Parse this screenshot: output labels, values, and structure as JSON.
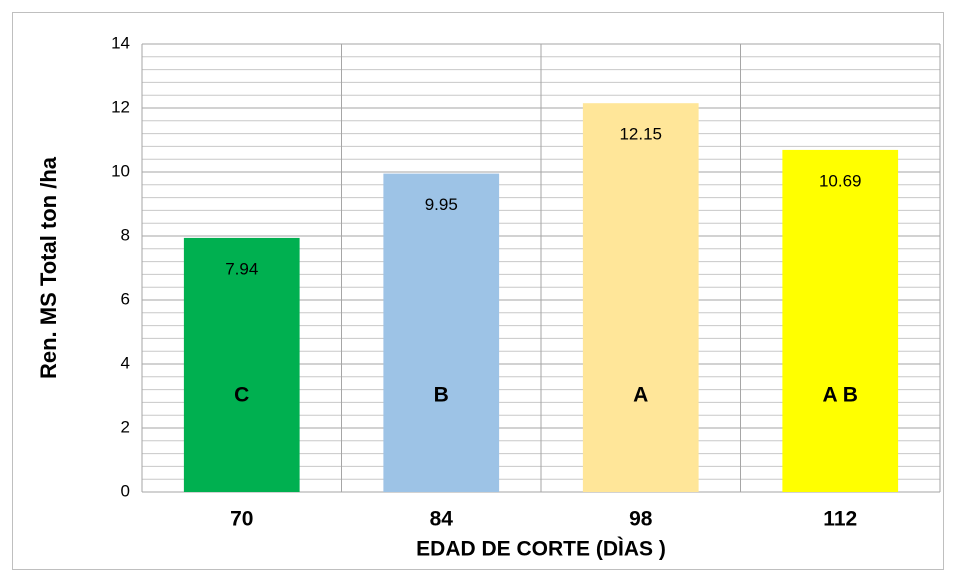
{
  "chart_data": {
    "type": "bar",
    "y_axis_label": "Ren. MS Total ton /ha",
    "x_axis_label": "EDAD DE CORTE  (DÌAS )",
    "categories": [
      "70",
      "84",
      "98",
      "112"
    ],
    "values": [
      7.94,
      9.95,
      12.15,
      10.69
    ],
    "colors": [
      "#00b050",
      "#9dc3e6",
      "#ffe699",
      "#ffff00"
    ],
    "group_labels": [
      "C",
      "B",
      "A",
      "A B"
    ],
    "ylim": [
      0,
      14
    ],
    "yticks": [
      0,
      2,
      4,
      6,
      8,
      10,
      12,
      14
    ],
    "grid": true,
    "minor_grid_divisions": 5
  }
}
